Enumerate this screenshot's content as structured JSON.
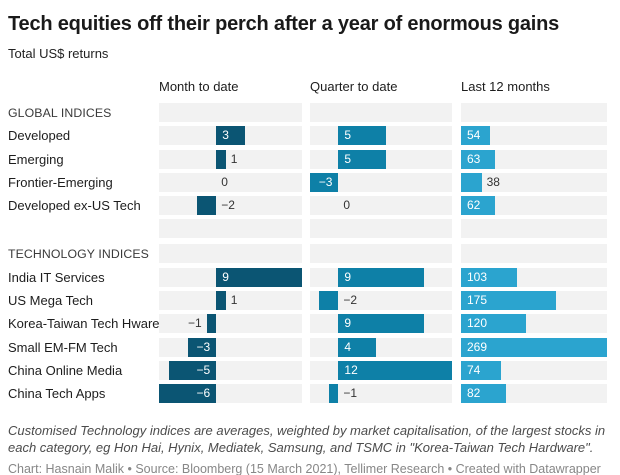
{
  "header": {
    "title": "Tech equities off their perch after a year of enormous gains",
    "subtitle": "Total US$ returns"
  },
  "chart_data": {
    "type": "bar",
    "orientation": "horizontal",
    "grid": false,
    "legend_position": "none",
    "columns": [
      {
        "label": "Month to date",
        "domain": [
          -6,
          9
        ],
        "color": "#0b5573"
      },
      {
        "label": "Quarter to date",
        "domain": [
          -3,
          12
        ],
        "color": "#0e80a7"
      },
      {
        "label": "Last 12 months",
        "domain": [
          0,
          269
        ],
        "color": "#2ba4cf"
      }
    ],
    "rows": [
      {
        "type": "section",
        "label": "GLOBAL INDICES",
        "values": [
          null,
          null,
          null
        ],
        "placements": [
          null,
          null,
          null
        ]
      },
      {
        "type": "data",
        "label": "Developed",
        "values": [
          3,
          5,
          54
        ],
        "placements": [
          "in",
          "in",
          "in"
        ]
      },
      {
        "type": "data",
        "label": "Emerging",
        "values": [
          1,
          5,
          63
        ],
        "placements": [
          "out-right",
          "in",
          "in"
        ]
      },
      {
        "type": "data",
        "label": "Frontier-Emerging",
        "values": [
          0,
          -3,
          38
        ],
        "placements": [
          "out-right",
          "in",
          "out-right"
        ]
      },
      {
        "type": "data",
        "label": "Developed ex-US Tech",
        "values": [
          -2,
          0,
          62
        ],
        "placements": [
          "out-right",
          "out-right",
          "in"
        ]
      },
      {
        "type": "spacer",
        "label": "",
        "values": [
          null,
          null,
          null
        ],
        "placements": [
          null,
          null,
          null
        ]
      },
      {
        "type": "section",
        "label": "TECHNOLOGY INDICES",
        "values": [
          null,
          null,
          null
        ],
        "placements": [
          null,
          null,
          null
        ]
      },
      {
        "type": "data",
        "label": "India IT Services",
        "values": [
          9,
          9,
          103
        ],
        "placements": [
          "in",
          "in",
          "in"
        ]
      },
      {
        "type": "data",
        "label": "US Mega Tech",
        "values": [
          1,
          -2,
          175
        ],
        "placements": [
          "out-right",
          "out-right",
          "in"
        ]
      },
      {
        "type": "data",
        "label": "Korea-Taiwan Tech Hware",
        "values": [
          -1,
          9,
          120
        ],
        "placements": [
          "out-left",
          "in",
          "in"
        ]
      },
      {
        "type": "data",
        "label": "Small EM-FM Tech",
        "values": [
          -3,
          4,
          269
        ],
        "placements": [
          "in",
          "in",
          "in"
        ]
      },
      {
        "type": "data",
        "label": "China Online Media",
        "values": [
          -5,
          12,
          74
        ],
        "placements": [
          "in",
          "in",
          "in"
        ]
      },
      {
        "type": "data",
        "label": "China Tech Apps",
        "values": [
          -6,
          -1,
          82
        ],
        "placements": [
          "in",
          "out-right",
          "in"
        ]
      }
    ],
    "band_color": "#f2f2f2",
    "negative_sign": "−"
  },
  "footer": {
    "note": "Customised Technology indices are averages, weighted by market capitalisation, of the largest stocks in each category, eg Hon Hai, Hynix, Mediatek, Samsung, and TSMC in \"Korea-Taiwan Tech Hardware\".",
    "byline": "Chart: Hasnain Malik • Source: Bloomberg (15 March 2021), Tellimer Research • Created with Datawrapper"
  }
}
